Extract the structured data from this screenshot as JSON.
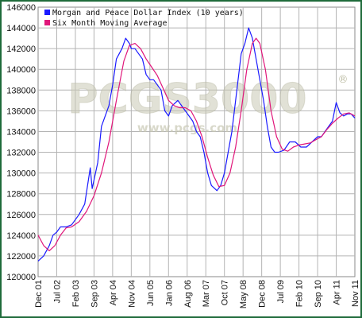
{
  "chart_data": {
    "type": "line",
    "title": "",
    "xlabel": "",
    "ylabel": "",
    "ylim": [
      120000,
      146000
    ],
    "y_ticks": [
      120000,
      122000,
      124000,
      126000,
      128000,
      130000,
      132000,
      134000,
      136000,
      138000,
      140000,
      142000,
      144000,
      146000
    ],
    "x_tick_labels": [
      "Dec 01",
      "Jul 02",
      "Feb 03",
      "Sep 03",
      "Apr 04",
      "Nov 04",
      "Jun 05",
      "Jan 06",
      "Aug 06",
      "Mar 07",
      "Oct 07",
      "May 08",
      "Dec 08",
      "Jul 09",
      "Feb 10",
      "Sep 10",
      "Apr 11",
      "Nov 11"
    ],
    "grid": true,
    "legend_position": "top-left",
    "series": [
      {
        "name": "Morgan and Peace Dollar Index (10 years)",
        "color": "#1a1aff",
        "points": [
          [
            0.0,
            121500
          ],
          [
            0.3,
            122000
          ],
          [
            0.6,
            123000
          ],
          [
            0.8,
            124000
          ],
          [
            1.0,
            124300
          ],
          [
            1.2,
            124800
          ],
          [
            1.5,
            124800
          ],
          [
            1.8,
            125000
          ],
          [
            2.2,
            126000
          ],
          [
            2.5,
            127000
          ],
          [
            2.8,
            130500
          ],
          [
            2.9,
            128500
          ],
          [
            3.2,
            131000
          ],
          [
            3.4,
            134500
          ],
          [
            3.6,
            135500
          ],
          [
            3.8,
            136500
          ],
          [
            4.0,
            138500
          ],
          [
            4.2,
            141000
          ],
          [
            4.5,
            142000
          ],
          [
            4.7,
            143000
          ],
          [
            4.9,
            142500
          ],
          [
            5.0,
            142000
          ],
          [
            5.2,
            142000
          ],
          [
            5.4,
            141500
          ],
          [
            5.6,
            141000
          ],
          [
            5.8,
            139500
          ],
          [
            6.0,
            139000
          ],
          [
            6.2,
            139000
          ],
          [
            6.4,
            138500
          ],
          [
            6.6,
            138000
          ],
          [
            6.8,
            136000
          ],
          [
            7.0,
            135500
          ],
          [
            7.2,
            136500
          ],
          [
            7.5,
            137000
          ],
          [
            7.7,
            136500
          ],
          [
            7.9,
            136000
          ],
          [
            8.1,
            135500
          ],
          [
            8.3,
            135000
          ],
          [
            8.5,
            134000
          ],
          [
            8.7,
            133500
          ],
          [
            8.9,
            132000
          ],
          [
            9.1,
            130000
          ],
          [
            9.3,
            128800
          ],
          [
            9.6,
            128300
          ],
          [
            9.8,
            128800
          ],
          [
            10.0,
            130000
          ],
          [
            10.2,
            132000
          ],
          [
            10.4,
            134000
          ],
          [
            10.6,
            137000
          ],
          [
            10.8,
            140000
          ],
          [
            10.9,
            141500
          ],
          [
            11.1,
            142500
          ],
          [
            11.3,
            144000
          ],
          [
            11.5,
            143000
          ],
          [
            11.7,
            141000
          ],
          [
            11.9,
            139000
          ],
          [
            12.1,
            137000
          ],
          [
            12.3,
            134500
          ],
          [
            12.5,
            132500
          ],
          [
            12.7,
            132000
          ],
          [
            12.9,
            132000
          ],
          [
            13.2,
            132200
          ],
          [
            13.5,
            133000
          ],
          [
            13.8,
            133000
          ],
          [
            14.1,
            132500
          ],
          [
            14.4,
            132500
          ],
          [
            14.7,
            133000
          ],
          [
            15.0,
            133500
          ],
          [
            15.2,
            133500
          ],
          [
            15.4,
            134000
          ],
          [
            15.6,
            134500
          ],
          [
            15.8,
            135000
          ],
          [
            16.0,
            136800
          ],
          [
            16.2,
            135800
          ],
          [
            16.4,
            135500
          ],
          [
            16.6,
            135700
          ],
          [
            16.8,
            135700
          ],
          [
            17.0,
            135300
          ]
        ]
      },
      {
        "name": "Six Month Moving Average",
        "color": "#e0167a",
        "points": [
          [
            0.0,
            124000
          ],
          [
            0.3,
            123000
          ],
          [
            0.6,
            122500
          ],
          [
            0.9,
            123000
          ],
          [
            1.2,
            124000
          ],
          [
            1.5,
            124700
          ],
          [
            1.8,
            124800
          ],
          [
            2.2,
            125300
          ],
          [
            2.6,
            126300
          ],
          [
            3.0,
            127800
          ],
          [
            3.4,
            130000
          ],
          [
            3.8,
            133000
          ],
          [
            4.2,
            137000
          ],
          [
            4.6,
            140800
          ],
          [
            4.9,
            142300
          ],
          [
            5.2,
            142500
          ],
          [
            5.5,
            142000
          ],
          [
            5.8,
            141000
          ],
          [
            6.1,
            140200
          ],
          [
            6.4,
            139400
          ],
          [
            6.7,
            138200
          ],
          [
            7.0,
            137000
          ],
          [
            7.3,
            136500
          ],
          [
            7.6,
            136300
          ],
          [
            7.9,
            136300
          ],
          [
            8.2,
            136000
          ],
          [
            8.5,
            135000
          ],
          [
            8.8,
            133500
          ],
          [
            9.1,
            131500
          ],
          [
            9.4,
            129800
          ],
          [
            9.7,
            128700
          ],
          [
            10.0,
            128800
          ],
          [
            10.3,
            130000
          ],
          [
            10.6,
            132500
          ],
          [
            10.9,
            136000
          ],
          [
            11.2,
            140000
          ],
          [
            11.5,
            142500
          ],
          [
            11.7,
            143000
          ],
          [
            11.9,
            142500
          ],
          [
            12.2,
            140000
          ],
          [
            12.5,
            136000
          ],
          [
            12.8,
            133500
          ],
          [
            13.1,
            132300
          ],
          [
            13.4,
            132100
          ],
          [
            13.7,
            132500
          ],
          [
            14.0,
            132700
          ],
          [
            14.3,
            132800
          ],
          [
            14.6,
            132900
          ],
          [
            14.9,
            133200
          ],
          [
            15.2,
            133500
          ],
          [
            15.5,
            134200
          ],
          [
            15.8,
            134800
          ],
          [
            16.1,
            135300
          ],
          [
            16.4,
            135700
          ],
          [
            16.7,
            135800
          ],
          [
            17.0,
            135500
          ]
        ]
      }
    ]
  },
  "watermark": {
    "logo_text": "PCGS3000",
    "url_text": "www.pcgs.com",
    "registered": "®"
  }
}
